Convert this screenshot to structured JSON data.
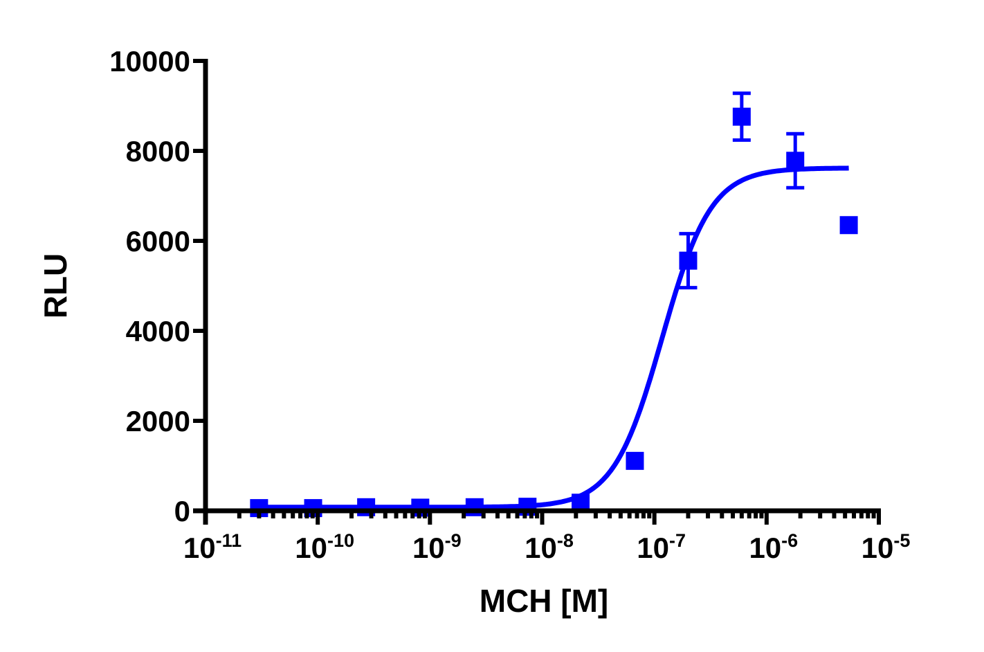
{
  "chart_data": {
    "type": "scatter",
    "title": "",
    "xlabel": "MCH [M]",
    "ylabel": "RLU",
    "xscale": "log",
    "xlim": [
      1e-11,
      1e-05
    ],
    "ylim": [
      0,
      10000
    ],
    "x_ticks": [
      {
        "base": "10",
        "exp": "-11",
        "value": 1e-11
      },
      {
        "base": "10",
        "exp": "-10",
        "value": 1e-10
      },
      {
        "base": "10",
        "exp": "-9",
        "value": 1e-09
      },
      {
        "base": "10",
        "exp": "-8",
        "value": 1e-08
      },
      {
        "base": "10",
        "exp": "-7",
        "value": 1e-07
      },
      {
        "base": "10",
        "exp": "-6",
        "value": 1e-06
      },
      {
        "base": "10",
        "exp": "-5",
        "value": 1e-05
      }
    ],
    "y_ticks": [
      0,
      2000,
      4000,
      6000,
      8000,
      10000
    ],
    "grid": false,
    "legend": null,
    "color": "#0000ff",
    "series": [
      {
        "name": "MCH",
        "marker": "square",
        "x": [
          3e-11,
          9.1e-11,
          2.7e-10,
          8.2e-10,
          2.5e-09,
          7.4e-09,
          2.2e-08,
          6.7e-08,
          2e-07,
          6e-07,
          1.8e-06,
          5.4e-06
        ],
        "y": [
          60,
          60,
          80,
          70,
          80,
          90,
          180,
          1110,
          5560,
          8760,
          7780,
          6350
        ],
        "error": [
          0,
          0,
          0,
          0,
          0,
          0,
          0,
          0,
          600,
          520,
          600,
          0
        ]
      }
    ],
    "fit": {
      "type": "sigmoidal dose-response",
      "bottom": 80,
      "top": 7620,
      "log_ec50": -6.93,
      "hill": 2.0,
      "x_range": [
        3e-11,
        5.4e-06
      ]
    }
  }
}
